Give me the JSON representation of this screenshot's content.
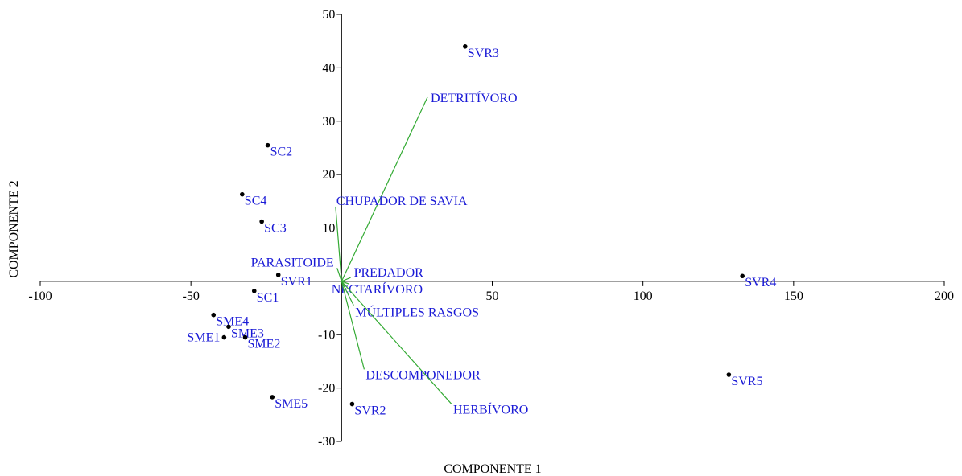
{
  "chart_data": {
    "type": "scatter",
    "subtype": "pca-biplot",
    "title": "",
    "xlabel": "COMPONENTE 1",
    "ylabel": "COMPONENTE 2",
    "xlim": [
      -100,
      200
    ],
    "ylim": [
      -30,
      50
    ],
    "xticks": [
      -100,
      -50,
      50,
      100,
      150,
      200
    ],
    "yticks": [
      -30,
      -20,
      -10,
      10,
      20,
      30,
      40,
      50
    ],
    "colors": {
      "points": "#000000",
      "labels": "#1a1ad6",
      "vectors": "#33aa33",
      "axes": "#000000"
    },
    "points": [
      {
        "name": "SVR3",
        "x": 41,
        "y": 44
      },
      {
        "name": "SC2",
        "x": -24.5,
        "y": 25.5
      },
      {
        "name": "SC4",
        "x": -33,
        "y": 16.3
      },
      {
        "name": "SC3",
        "x": -26.5,
        "y": 11.2
      },
      {
        "name": "SVR1",
        "x": -21,
        "y": 1.2
      },
      {
        "name": "SC1",
        "x": -29,
        "y": -1.8
      },
      {
        "name": "SME4",
        "x": -42.5,
        "y": -6.3
      },
      {
        "name": "SME3",
        "x": -37.5,
        "y": -8.5
      },
      {
        "name": "SME1",
        "x": -39,
        "y": -10.5
      },
      {
        "name": "SME2",
        "x": -32,
        "y": -10.5
      },
      {
        "name": "SME5",
        "x": -23,
        "y": -21.7
      },
      {
        "name": "SVR2",
        "x": 3.5,
        "y": -23
      },
      {
        "name": "SVR4",
        "x": 133,
        "y": 1
      },
      {
        "name": "SVR5",
        "x": 128.5,
        "y": -17.5
      }
    ],
    "vectors": [
      {
        "name": "DETRITÍVORO",
        "x": 28.5,
        "y": 34.5
      },
      {
        "name": "CHUPADOR DE SAVIA",
        "x": -2,
        "y": 14
      },
      {
        "name": "PARASITOIDE",
        "x": -1.5,
        "y": 2.5
      },
      {
        "name": "PREDADOR",
        "x": 3,
        "y": 0.7
      },
      {
        "name": "NECTARÍVORO",
        "x": 2.5,
        "y": -0.5
      },
      {
        "name": "MÚLTIPLES RASGOS",
        "x": 4,
        "y": -4.5
      },
      {
        "name": "DESCOMPONEDOR",
        "x": 7.5,
        "y": -16.5
      },
      {
        "name": "HERBÍVORO",
        "x": 36.5,
        "y": -23
      }
    ]
  }
}
